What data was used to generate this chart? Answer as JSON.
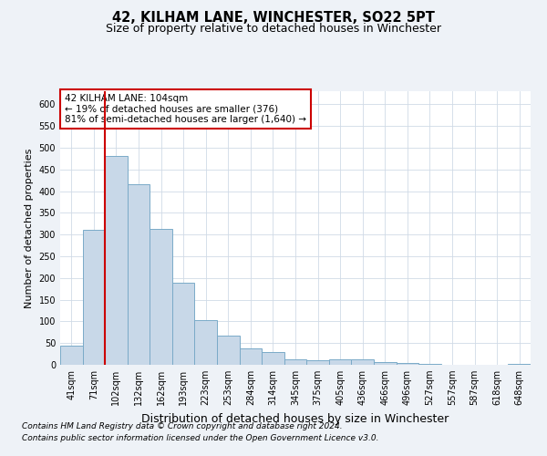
{
  "title": "42, KILHAM LANE, WINCHESTER, SO22 5PT",
  "subtitle": "Size of property relative to detached houses in Winchester",
  "xlabel": "Distribution of detached houses by size in Winchester",
  "ylabel": "Number of detached properties",
  "categories": [
    "41sqm",
    "71sqm",
    "102sqm",
    "132sqm",
    "162sqm",
    "193sqm",
    "223sqm",
    "253sqm",
    "284sqm",
    "314sqm",
    "345sqm",
    "375sqm",
    "405sqm",
    "436sqm",
    "466sqm",
    "496sqm",
    "527sqm",
    "557sqm",
    "587sqm",
    "618sqm",
    "648sqm"
  ],
  "values": [
    45,
    310,
    480,
    415,
    312,
    190,
    103,
    68,
    37,
    30,
    13,
    10,
    13,
    12,
    6,
    4,
    2,
    1,
    1,
    1,
    3
  ],
  "bar_color": "#c8d8e8",
  "bar_edge_color": "#7aaac8",
  "bar_edge_width": 0.7,
  "vline_color": "#cc0000",
  "annotation_text": "42 KILHAM LANE: 104sqm\n← 19% of detached houses are smaller (376)\n81% of semi-detached houses are larger (1,640) →",
  "annotation_box_color": "#ffffff",
  "annotation_box_edge": "#cc0000",
  "annotation_fontsize": 7.5,
  "ylim": [
    0,
    630
  ],
  "yticks": [
    0,
    50,
    100,
    150,
    200,
    250,
    300,
    350,
    400,
    450,
    500,
    550,
    600
  ],
  "title_fontsize": 10.5,
  "subtitle_fontsize": 9,
  "xlabel_fontsize": 9,
  "ylabel_fontsize": 8,
  "tick_fontsize": 7,
  "footnote1": "Contains HM Land Registry data © Crown copyright and database right 2024.",
  "footnote2": "Contains public sector information licensed under the Open Government Licence v3.0.",
  "footnote_fontsize": 6.5,
  "bg_color": "#eef2f7",
  "plot_bg_color": "#ffffff",
  "grid_color": "#d0dae6"
}
